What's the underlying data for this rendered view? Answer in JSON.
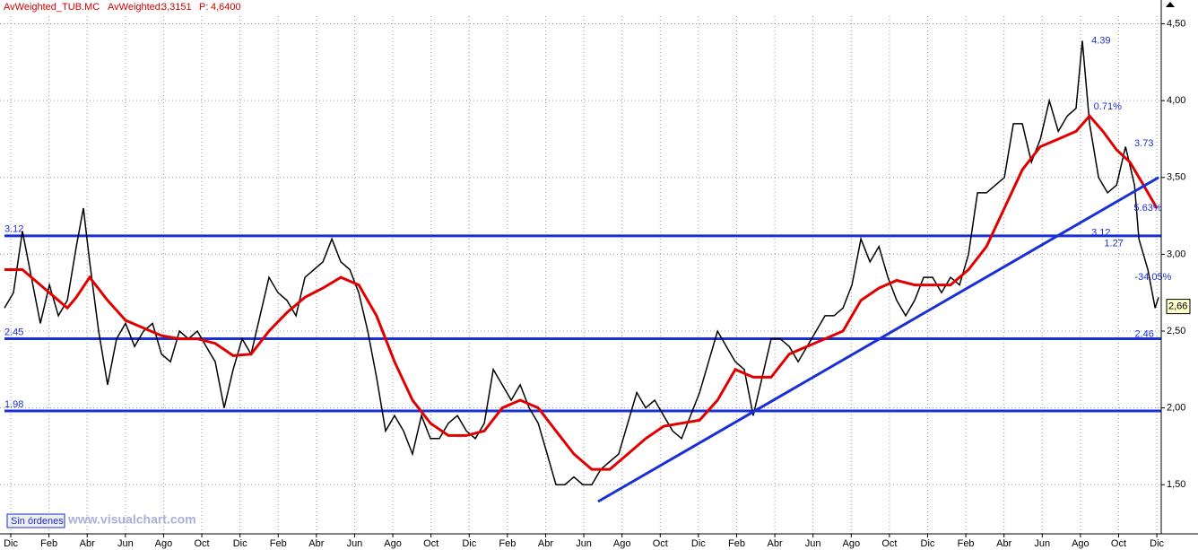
{
  "header": {
    "symbol": "AvWeighted_TUB.MC",
    "indicator": "AvWeighted:",
    "indicator_value": "3,3151",
    "price_label": "P:",
    "price_value": "4,6400"
  },
  "footer": {
    "orders": "Sin órdenes",
    "site": "www.visualchart.com"
  },
  "chart_data": {
    "type": "line",
    "xlim": [
      -0.33,
      60.23
    ],
    "ylim": [
      1.18,
      4.55
    ],
    "xticks": [
      {
        "value": 0,
        "label": "Dic"
      },
      {
        "value": 2,
        "label": "Feb"
      },
      {
        "value": 4,
        "label": "Abr"
      },
      {
        "value": 6,
        "label": "Jun"
      },
      {
        "value": 8,
        "label": "Ago"
      },
      {
        "value": 10,
        "label": "Oct"
      },
      {
        "value": 12,
        "label": "Dic"
      },
      {
        "value": 14,
        "label": "Feb"
      },
      {
        "value": 16,
        "label": "Abr"
      },
      {
        "value": 18,
        "label": "Jun"
      },
      {
        "value": 20,
        "label": "Ago"
      },
      {
        "value": 22,
        "label": "Oct"
      },
      {
        "value": 24,
        "label": "Dic"
      },
      {
        "value": 26,
        "label": "Feb"
      },
      {
        "value": 28,
        "label": "Abr"
      },
      {
        "value": 30,
        "label": "Jun"
      },
      {
        "value": 32,
        "label": "Ago"
      },
      {
        "value": 34,
        "label": "Oct"
      },
      {
        "value": 36,
        "label": "Dic"
      },
      {
        "value": 38,
        "label": "Feb"
      },
      {
        "value": 40,
        "label": "Abr"
      },
      {
        "value": 42,
        "label": "Jun"
      },
      {
        "value": 44,
        "label": "Ago"
      },
      {
        "value": 46,
        "label": "Oct"
      },
      {
        "value": 48,
        "label": "Dic"
      },
      {
        "value": 50,
        "label": "Feb"
      },
      {
        "value": 52,
        "label": "Abr"
      },
      {
        "value": 54,
        "label": "Jun"
      },
      {
        "value": 56,
        "label": "Ago"
      },
      {
        "value": 58,
        "label": "Oct"
      },
      {
        "value": 60,
        "label": "Dic"
      }
    ],
    "yticks": [
      {
        "value": 1.5,
        "label": "1,50"
      },
      {
        "value": 2,
        "label": "2,00"
      },
      {
        "value": 2.5,
        "label": "2,50"
      },
      {
        "value": 3,
        "label": "3,00"
      },
      {
        "value": 3.5,
        "label": "3,50"
      },
      {
        "value": 4,
        "label": "4,00"
      },
      {
        "value": 4.5,
        "label": "4,50"
      }
    ],
    "grid": true,
    "series": [
      {
        "color": "#000000",
        "x": [
          -0.33,
          0.14,
          0.61,
          1.08,
          1.55,
          2.02,
          2.49,
          2.96,
          3.43,
          3.8,
          4.13,
          4.6,
          5.07,
          5.54,
          6.01,
          6.48,
          6.95,
          7.42,
          7.89,
          8.36,
          8.83,
          9.3,
          9.77,
          10.23,
          10.7,
          11.17,
          11.64,
          12.11,
          12.58,
          13.05,
          13.52,
          13.99,
          14.46,
          14.93,
          15.4,
          15.87,
          16.34,
          16.81,
          17.28,
          17.75,
          18.22,
          18.69,
          19.15,
          19.62,
          20.09,
          20.56,
          21.03,
          21.5,
          21.97,
          22.44,
          22.91,
          23.38,
          23.85,
          24.32,
          24.79,
          25.26,
          25.73,
          26.2,
          26.67,
          27.14,
          27.61,
          28.08,
          28.54,
          29.01,
          29.48,
          29.95,
          30.42,
          30.89,
          31.36,
          31.83,
          32.3,
          32.77,
          33.24,
          33.71,
          34.18,
          34.65,
          35.12,
          35.59,
          36.06,
          36.53,
          37.0,
          37.46,
          37.93,
          38.4,
          38.87,
          39.34,
          39.81,
          40.28,
          40.75,
          41.22,
          41.69,
          42.16,
          42.63,
          43.1,
          43.57,
          44.04,
          44.51,
          44.98,
          45.45,
          45.92,
          46.38,
          46.85,
          47.32,
          47.79,
          48.26,
          48.73,
          49.2,
          49.67,
          50.14,
          50.61,
          51.08,
          51.55,
          52.02,
          52.49,
          52.96,
          53.43,
          53.9,
          54.37,
          54.84,
          55.31,
          55.77,
          56.1,
          56.48,
          56.95,
          57.42,
          57.89,
          58.36,
          58.83,
          59.06,
          59.53,
          59.91,
          60.09
        ],
        "values": [
          2.65,
          2.75,
          3.15,
          2.85,
          2.55,
          2.8,
          2.6,
          2.7,
          3.05,
          3.3,
          2.95,
          2.5,
          2.15,
          2.45,
          2.55,
          2.4,
          2.5,
          2.55,
          2.35,
          2.3,
          2.5,
          2.45,
          2.5,
          2.4,
          2.3,
          2.0,
          2.25,
          2.45,
          2.35,
          2.6,
          2.85,
          2.75,
          2.7,
          2.6,
          2.85,
          2.9,
          2.95,
          3.1,
          2.95,
          2.9,
          2.75,
          2.5,
          2.2,
          1.85,
          1.95,
          1.85,
          1.7,
          1.95,
          1.8,
          1.8,
          1.9,
          1.95,
          1.85,
          1.8,
          1.9,
          2.25,
          2.15,
          2.05,
          2.15,
          2.0,
          1.9,
          1.7,
          1.5,
          1.5,
          1.55,
          1.5,
          1.5,
          1.6,
          1.65,
          1.7,
          1.9,
          2.1,
          2.0,
          2.05,
          1.95,
          1.85,
          1.8,
          1.95,
          2.1,
          2.3,
          2.5,
          2.4,
          2.3,
          2.25,
          1.95,
          2.2,
          2.45,
          2.45,
          2.4,
          2.3,
          2.4,
          2.5,
          2.6,
          2.6,
          2.65,
          2.8,
          3.1,
          2.95,
          3.05,
          2.85,
          2.7,
          2.6,
          2.7,
          2.85,
          2.85,
          2.75,
          2.85,
          2.8,
          3.0,
          3.4,
          3.4,
          3.45,
          3.5,
          3.85,
          3.85,
          3.6,
          3.75,
          4.0,
          3.8,
          3.9,
          3.95,
          4.39,
          3.85,
          3.5,
          3.4,
          3.45,
          3.7,
          3.45,
          3.1,
          2.9,
          2.65,
          2.72
        ]
      },
      {
        "color": "#e00000",
        "x": [
          -0.33,
          0.61,
          1.55,
          2.49,
          2.96,
          3.43,
          4.13,
          5.07,
          6.01,
          6.95,
          7.89,
          8.83,
          9.77,
          10.7,
          11.64,
          12.58,
          13.52,
          14.46,
          15.4,
          16.34,
          17.28,
          18.22,
          19.15,
          20.09,
          21.03,
          21.97,
          22.91,
          23.85,
          24.79,
          25.73,
          26.67,
          27.61,
          28.54,
          29.48,
          30.42,
          31.36,
          32.3,
          33.24,
          34.18,
          35.12,
          36.06,
          37.0,
          37.93,
          38.87,
          39.81,
          40.75,
          41.69,
          42.63,
          43.57,
          44.51,
          45.45,
          46.38,
          47.32,
          48.26,
          49.2,
          50.14,
          51.08,
          52.02,
          52.96,
          53.9,
          54.84,
          55.77,
          56.48,
          57.18,
          57.89,
          58.59,
          59.3,
          60.0
        ],
        "values": [
          2.9,
          2.9,
          2.8,
          2.7,
          2.65,
          2.72,
          2.85,
          2.7,
          2.57,
          2.52,
          2.47,
          2.45,
          2.45,
          2.42,
          2.34,
          2.35,
          2.5,
          2.62,
          2.72,
          2.78,
          2.85,
          2.8,
          2.6,
          2.3,
          2.05,
          1.9,
          1.82,
          1.82,
          1.85,
          2.0,
          2.05,
          2.0,
          1.85,
          1.7,
          1.6,
          1.6,
          1.7,
          1.8,
          1.88,
          1.9,
          1.92,
          2.05,
          2.25,
          2.2,
          2.2,
          2.35,
          2.4,
          2.45,
          2.5,
          2.7,
          2.78,
          2.83,
          2.8,
          2.8,
          2.8,
          2.9,
          3.05,
          3.3,
          3.55,
          3.7,
          3.75,
          3.8,
          3.9,
          3.8,
          3.68,
          3.6,
          3.45,
          3.3
        ]
      },
      {
        "color": "#1a2fd6",
        "x": [
          30.75,
          60.09
        ],
        "values": [
          1.39,
          3.5
        ]
      }
    ],
    "levels": [
      {
        "value": 3.12,
        "label": "3.12"
      },
      {
        "value": 2.45,
        "label": "2.45"
      },
      {
        "value": 1.98,
        "label": "1.98"
      }
    ],
    "level_color": "#1a2fd6",
    "annotations": [
      {
        "text": "4.39",
        "x": 56.48,
        "y": 4.39
      },
      {
        "text": "0.71%",
        "x": 56.6,
        "y": 3.96
      },
      {
        "text": "3.73",
        "x": 58.73,
        "y": 3.72
      },
      {
        "text": "5.63%",
        "x": 58.7,
        "y": 3.3
      },
      {
        "text": "3.12",
        "x": 56.48,
        "y": 3.14
      },
      {
        "text": "1.27",
        "x": 57.15,
        "y": 3.07
      },
      {
        "text": "-34.05%",
        "x": 58.75,
        "y": 2.85
      },
      {
        "text": "2.46",
        "x": 58.75,
        "y": 2.48
      }
    ],
    "last_value": 2.66,
    "last_label": "2,66"
  }
}
